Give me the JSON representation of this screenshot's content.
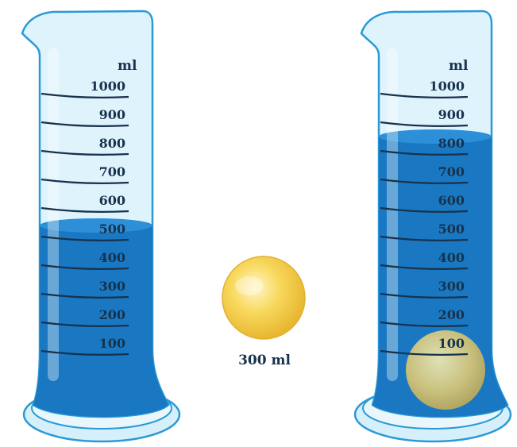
{
  "colors": {
    "liquid": "#1a78c2",
    "liquid_top": "#2d8fd8",
    "glass": "#bfe6f8",
    "glass_edge": "#2a9ad6",
    "text": "#17324d",
    "ball": "#f7cd45"
  },
  "left_cylinder": {
    "unit": "ml",
    "ticks": [
      "1000",
      "900",
      "800",
      "700",
      "600",
      "500",
      "400",
      "300",
      "200",
      "100"
    ],
    "liquid_level_ml": 550
  },
  "ball": {
    "label": "300 ml",
    "volume_ml": 300
  },
  "right_cylinder": {
    "unit": "ml",
    "ticks": [
      "1000",
      "900",
      "800",
      "700",
      "600",
      "500",
      "400",
      "300",
      "200",
      "100"
    ],
    "liquid_level_ml": 850
  }
}
